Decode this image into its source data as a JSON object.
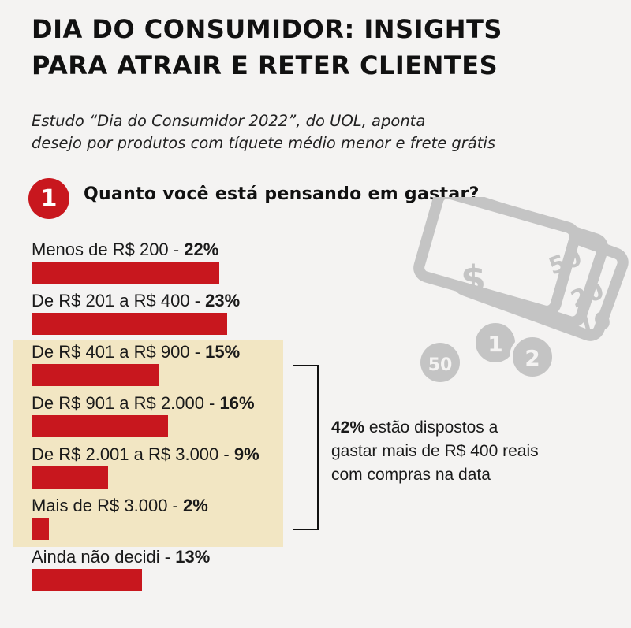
{
  "header": {
    "title_line1": "DIA DO CONSUMIDOR: INSIGHTS",
    "title_line2": "PARA ATRAIR E RETER CLIENTES",
    "subtitle_line1": "Estudo “Dia do Consumidor 2022”, do UOL, aponta",
    "subtitle_line2": "desejo por produtos com tíquete médio menor e frete grátis"
  },
  "question": {
    "number": "1",
    "text": "Quanto você está pensando em gastar?"
  },
  "colors": {
    "bar": "#c8171e",
    "highlight": "#f2e6c3",
    "background": "#f4f3f2",
    "icon_gray": "#c4c4c4"
  },
  "chart_data": {
    "type": "bar",
    "orientation": "horizontal",
    "categories": [
      "Menos de R$ 200",
      "De R$ 201 a R$ 400",
      "De R$ 401 a R$ 900",
      "De R$ 901 a R$ 2.000",
      "De R$ 2.001 a R$ 3.000",
      "Mais de R$ 3.000",
      "Ainda não decidi"
    ],
    "values": [
      22,
      23,
      15,
      16,
      9,
      2,
      13
    ],
    "value_labels": [
      "22%",
      "23%",
      "15%",
      "16%",
      "9%",
      "2%",
      "13%"
    ],
    "highlighted_categories": [
      2,
      3,
      4,
      5
    ]
  },
  "callout": {
    "percent": "42%",
    "line1_rest": " estão dispostos a",
    "line2": "gastar mais de R$ 400 reais",
    "line3": "com compras na data"
  },
  "illustration": {
    "icon": "money-bills-coins-icon",
    "bill_labels": [
      "$",
      "50",
      "20",
      "10"
    ],
    "coin_labels": [
      "50",
      "1",
      "2"
    ]
  }
}
